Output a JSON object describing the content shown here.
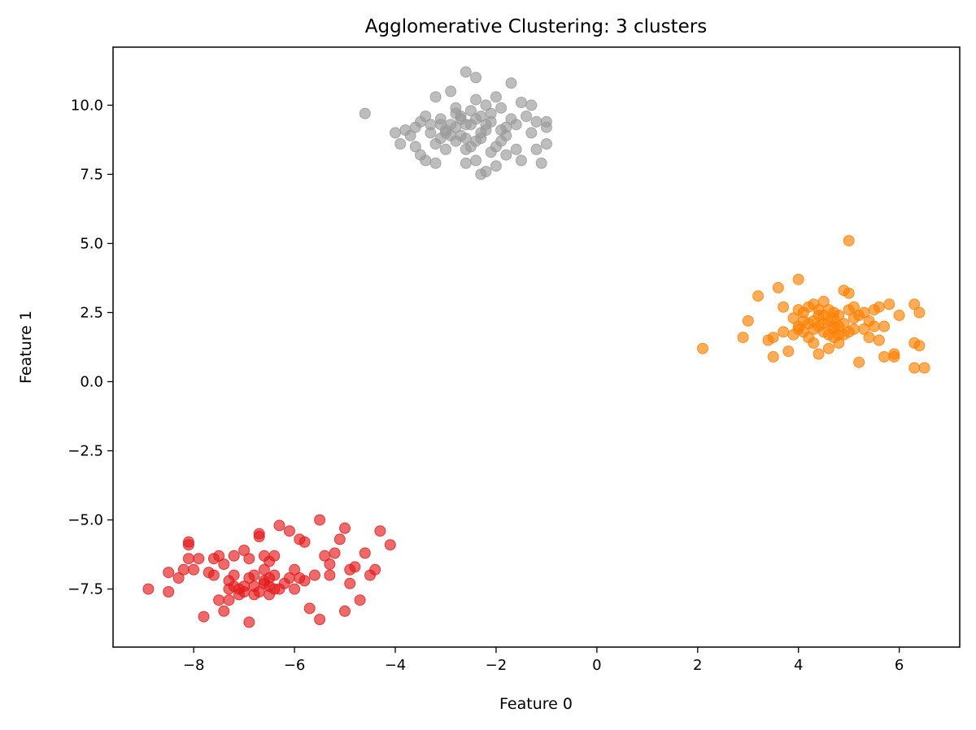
{
  "chart_data": {
    "type": "scatter",
    "title": "Agglomerative Clustering: 3 clusters",
    "xlabel": "Feature 0",
    "ylabel": "Feature 1",
    "xlim": [
      -9.6,
      7.2
    ],
    "ylim": [
      -9.6,
      12.1
    ],
    "xticks": [
      -8,
      -6,
      -4,
      -2,
      0,
      2,
      4,
      6
    ],
    "xtick_labels": [
      "−8",
      "−6",
      "−4",
      "−2",
      "0",
      "2",
      "4",
      "6"
    ],
    "yticks": [
      -7.5,
      -5.0,
      -2.5,
      0.0,
      2.5,
      5.0,
      7.5,
      10.0
    ],
    "ytick_labels": [
      "−7.5",
      "−5.0",
      "−2.5",
      "0.0",
      "2.5",
      "5.0",
      "7.5",
      "10.0"
    ],
    "grid": false,
    "marker_opacity": 0.65,
    "series": [
      {
        "color": "#e41a1c",
        "points": [
          [
            -8.9,
            -7.5
          ],
          [
            -8.5,
            -6.9
          ],
          [
            -8.5,
            -7.6
          ],
          [
            -8.3,
            -7.1
          ],
          [
            -8.2,
            -6.8
          ],
          [
            -8.1,
            -6.4
          ],
          [
            -8.1,
            -5.8
          ],
          [
            -8.1,
            -5.9
          ],
          [
            -8.0,
            -6.8
          ],
          [
            -7.9,
            -6.4
          ],
          [
            -7.8,
            -8.5
          ],
          [
            -7.7,
            -6.9
          ],
          [
            -7.6,
            -7.0
          ],
          [
            -7.6,
            -6.4
          ],
          [
            -7.5,
            -6.3
          ],
          [
            -7.5,
            -7.9
          ],
          [
            -7.4,
            -8.3
          ],
          [
            -7.4,
            -6.6
          ],
          [
            -7.3,
            -7.5
          ],
          [
            -7.3,
            -7.9
          ],
          [
            -7.2,
            -6.3
          ],
          [
            -7.2,
            -7.4
          ],
          [
            -7.1,
            -7.7
          ],
          [
            -7.0,
            -7.6
          ],
          [
            -7.0,
            -6.1
          ],
          [
            -6.9,
            -6.4
          ],
          [
            -6.9,
            -8.7
          ],
          [
            -6.8,
            -7.4
          ],
          [
            -6.8,
            -7.0
          ],
          [
            -6.8,
            -7.7
          ],
          [
            -6.7,
            -5.6
          ],
          [
            -6.7,
            -5.5
          ],
          [
            -6.6,
            -6.3
          ],
          [
            -6.6,
            -7.2
          ],
          [
            -6.5,
            -7.7
          ],
          [
            -6.5,
            -6.5
          ],
          [
            -6.4,
            -7.5
          ],
          [
            -6.4,
            -6.3
          ],
          [
            -6.3,
            -5.2
          ],
          [
            -6.3,
            -7.5
          ],
          [
            -6.2,
            -7.3
          ],
          [
            -6.1,
            -5.4
          ],
          [
            -6.1,
            -7.1
          ],
          [
            -6.0,
            -6.8
          ],
          [
            -6.0,
            -7.5
          ],
          [
            -5.9,
            -5.7
          ],
          [
            -5.9,
            -7.1
          ],
          [
            -5.8,
            -5.8
          ],
          [
            -5.8,
            -7.2
          ],
          [
            -5.7,
            -8.2
          ],
          [
            -5.6,
            -7.0
          ],
          [
            -5.5,
            -5.0
          ],
          [
            -5.5,
            -8.6
          ],
          [
            -5.4,
            -6.3
          ],
          [
            -5.3,
            -6.6
          ],
          [
            -5.3,
            -7.0
          ],
          [
            -5.2,
            -6.2
          ],
          [
            -5.1,
            -5.7
          ],
          [
            -5.0,
            -5.3
          ],
          [
            -5.0,
            -8.3
          ],
          [
            -4.9,
            -7.3
          ],
          [
            -4.9,
            -6.8
          ],
          [
            -4.8,
            -6.7
          ],
          [
            -4.7,
            -7.9
          ],
          [
            -4.6,
            -6.2
          ],
          [
            -4.5,
            -7.0
          ],
          [
            -4.4,
            -6.8
          ],
          [
            -4.3,
            -5.4
          ],
          [
            -4.1,
            -5.9
          ],
          [
            -6.6,
            -7.3
          ],
          [
            -6.7,
            -7.6
          ],
          [
            -6.9,
            -7.1
          ],
          [
            -7.0,
            -7.4
          ],
          [
            -6.5,
            -7.1
          ],
          [
            -7.3,
            -7.2
          ],
          [
            -6.6,
            -6.8
          ],
          [
            -7.1,
            -7.5
          ],
          [
            -6.4,
            -7.0
          ],
          [
            -7.2,
            -7.0
          ],
          [
            -6.5,
            -7.4
          ]
        ]
      },
      {
        "color": "#999999",
        "points": [
          [
            -4.6,
            9.7
          ],
          [
            -4.0,
            9.0
          ],
          [
            -3.9,
            8.6
          ],
          [
            -3.8,
            9.1
          ],
          [
            -3.7,
            8.9
          ],
          [
            -3.6,
            9.2
          ],
          [
            -3.6,
            8.5
          ],
          [
            -3.5,
            8.2
          ],
          [
            -3.5,
            9.4
          ],
          [
            -3.4,
            8.0
          ],
          [
            -3.4,
            9.6
          ],
          [
            -3.3,
            9.3
          ],
          [
            -3.2,
            8.6
          ],
          [
            -3.2,
            10.3
          ],
          [
            -3.2,
            7.9
          ],
          [
            -3.1,
            8.8
          ],
          [
            -3.1,
            9.5
          ],
          [
            -3.0,
            9.0
          ],
          [
            -3.0,
            8.4
          ],
          [
            -2.9,
            10.5
          ],
          [
            -2.9,
            9.3
          ],
          [
            -2.8,
            8.7
          ],
          [
            -2.8,
            9.9
          ],
          [
            -2.7,
            9.6
          ],
          [
            -2.7,
            8.9
          ],
          [
            -2.6,
            8.4
          ],
          [
            -2.6,
            7.9
          ],
          [
            -2.6,
            11.2
          ],
          [
            -2.5,
            9.3
          ],
          [
            -2.5,
            8.5
          ],
          [
            -2.4,
            10.2
          ],
          [
            -2.4,
            11.0
          ],
          [
            -2.4,
            8.0
          ],
          [
            -2.3,
            9.6
          ],
          [
            -2.3,
            7.5
          ],
          [
            -2.3,
            8.8
          ],
          [
            -2.2,
            9.1
          ],
          [
            -2.2,
            7.6
          ],
          [
            -2.2,
            10.0
          ],
          [
            -2.1,
            8.3
          ],
          [
            -2.1,
            9.4
          ],
          [
            -2.0,
            7.8
          ],
          [
            -2.0,
            10.3
          ],
          [
            -1.9,
            8.7
          ],
          [
            -1.9,
            9.9
          ],
          [
            -1.8,
            9.2
          ],
          [
            -1.8,
            8.2
          ],
          [
            -1.7,
            10.8
          ],
          [
            -1.6,
            9.3
          ],
          [
            -1.6,
            8.4
          ],
          [
            -1.5,
            10.1
          ],
          [
            -1.5,
            8.0
          ],
          [
            -1.4,
            9.6
          ],
          [
            -1.3,
            9.0
          ],
          [
            -1.3,
            10.0
          ],
          [
            -1.2,
            8.4
          ],
          [
            -1.2,
            9.4
          ],
          [
            -1.1,
            7.9
          ],
          [
            -1.0,
            8.6
          ],
          [
            -1.0,
            9.4
          ],
          [
            -1.0,
            9.2
          ],
          [
            -2.6,
            9.3
          ],
          [
            -2.8,
            9.2
          ],
          [
            -2.4,
            9.5
          ],
          [
            -3.0,
            9.1
          ],
          [
            -2.3,
            9.0
          ],
          [
            -2.7,
            9.5
          ],
          [
            -2.5,
            9.8
          ],
          [
            -2.9,
            8.9
          ],
          [
            -2.2,
            9.3
          ],
          [
            -2.6,
            8.8
          ],
          [
            -3.1,
            9.3
          ],
          [
            -1.9,
            9.1
          ],
          [
            -2.4,
            8.7
          ],
          [
            -2.8,
            9.7
          ],
          [
            -2.1,
            9.7
          ],
          [
            -1.7,
            9.5
          ],
          [
            -1.8,
            8.9
          ],
          [
            -3.3,
            9.0
          ],
          [
            -2.0,
            8.5
          ]
        ]
      },
      {
        "color": "#ff7f00",
        "points": [
          [
            2.1,
            1.2
          ],
          [
            2.9,
            1.6
          ],
          [
            3.0,
            2.2
          ],
          [
            3.2,
            3.1
          ],
          [
            3.4,
            1.5
          ],
          [
            3.5,
            0.9
          ],
          [
            3.5,
            1.6
          ],
          [
            3.6,
            3.4
          ],
          [
            3.7,
            2.7
          ],
          [
            3.7,
            1.8
          ],
          [
            3.8,
            1.1
          ],
          [
            3.9,
            2.3
          ],
          [
            4.0,
            3.7
          ],
          [
            4.0,
            2.0
          ],
          [
            4.0,
            1.9
          ],
          [
            4.1,
            2.5
          ],
          [
            4.1,
            1.8
          ],
          [
            4.2,
            2.7
          ],
          [
            4.3,
            1.4
          ],
          [
            4.3,
            2.2
          ],
          [
            4.3,
            2.8
          ],
          [
            4.4,
            2.4
          ],
          [
            4.4,
            1.0
          ],
          [
            4.5,
            2.9
          ],
          [
            4.5,
            2.1
          ],
          [
            4.6,
            1.7
          ],
          [
            4.6,
            1.2
          ],
          [
            4.7,
            2.3
          ],
          [
            4.7,
            1.6
          ],
          [
            4.7,
            2.5
          ],
          [
            4.8,
            1.4
          ],
          [
            4.8,
            2.0
          ],
          [
            4.9,
            3.3
          ],
          [
            4.9,
            1.7
          ],
          [
            5.0,
            2.6
          ],
          [
            5.0,
            5.1
          ],
          [
            5.0,
            3.2
          ],
          [
            5.1,
            2.7
          ],
          [
            5.1,
            1.9
          ],
          [
            5.2,
            0.7
          ],
          [
            5.2,
            2.4
          ],
          [
            5.3,
            1.9
          ],
          [
            5.3,
            2.5
          ],
          [
            5.4,
            2.2
          ],
          [
            5.4,
            1.6
          ],
          [
            5.5,
            2.6
          ],
          [
            5.5,
            2.0
          ],
          [
            5.6,
            1.5
          ],
          [
            5.6,
            2.7
          ],
          [
            5.7,
            2.0
          ],
          [
            5.7,
            0.9
          ],
          [
            5.8,
            2.8
          ],
          [
            5.9,
            1.0
          ],
          [
            5.9,
            0.9
          ],
          [
            6.0,
            2.4
          ],
          [
            6.3,
            0.5
          ],
          [
            6.3,
            2.8
          ],
          [
            6.3,
            1.4
          ],
          [
            6.4,
            2.5
          ],
          [
            6.4,
            1.3
          ],
          [
            6.5,
            0.5
          ],
          [
            4.2,
            2.1
          ],
          [
            4.4,
            2.0
          ],
          [
            4.6,
            2.2
          ],
          [
            4.5,
            1.8
          ],
          [
            4.8,
            2.4
          ],
          [
            4.3,
            1.9
          ],
          [
            4.1,
            2.2
          ],
          [
            4.7,
            1.9
          ],
          [
            4.9,
            2.1
          ],
          [
            4.2,
            1.6
          ],
          [
            4.6,
            2.6
          ],
          [
            5.0,
            1.8
          ],
          [
            4.4,
            2.6
          ],
          [
            3.9,
            1.7
          ],
          [
            4.8,
            1.7
          ],
          [
            5.1,
            2.3
          ],
          [
            4.0,
            2.6
          ],
          [
            4.5,
            2.4
          ],
          [
            4.7,
            2.0
          ]
        ]
      }
    ]
  }
}
